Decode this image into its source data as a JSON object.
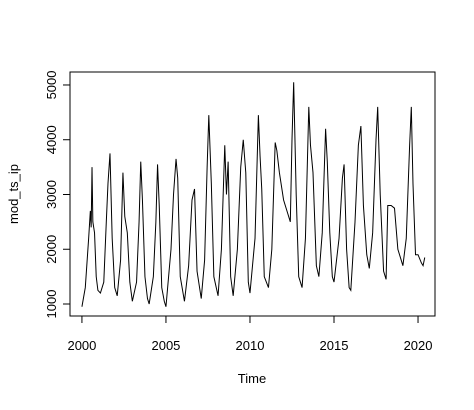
{
  "chart_data": {
    "type": "line",
    "xlabel": "Time",
    "ylabel": "mod_ts_ip",
    "color": "#000000",
    "x": [
      2000.0,
      2000.2,
      2000.4,
      2000.5,
      2000.55,
      2000.6,
      2000.65,
      2000.75,
      2000.85,
      2000.95,
      2001.1,
      2001.3,
      2001.45,
      2001.55,
      2001.67,
      2001.8,
      2001.95,
      2002.1,
      2002.3,
      2002.44,
      2002.55,
      2002.7,
      2002.85,
      2003.0,
      2003.25,
      2003.4,
      2003.5,
      2003.6,
      2003.75,
      2003.9,
      2004.0,
      2004.25,
      2004.4,
      2004.5,
      2004.6,
      2004.75,
      2004.9,
      2005.0,
      2005.3,
      2005.45,
      2005.6,
      2005.7,
      2005.85,
      2006.1,
      2006.35,
      2006.55,
      2006.7,
      2006.85,
      2007.1,
      2007.3,
      2007.45,
      2007.55,
      2007.7,
      2007.85,
      2008.1,
      2008.3,
      2008.5,
      2008.6,
      2008.7,
      2008.85,
      2009.0,
      2009.25,
      2009.45,
      2009.6,
      2009.75,
      2009.9,
      2010.0,
      2010.3,
      2010.5,
      2010.6,
      2010.7,
      2010.85,
      2011.1,
      2011.3,
      2011.5,
      2011.6,
      2011.75,
      2012.0,
      2012.3,
      2012.4,
      2012.5,
      2012.6,
      2012.75,
      2012.9,
      2013.1,
      2013.3,
      2013.5,
      2013.6,
      2013.75,
      2013.95,
      2014.1,
      2014.3,
      2014.5,
      2014.6,
      2014.75,
      2014.9,
      2015.0,
      2015.3,
      2015.5,
      2015.6,
      2015.75,
      2015.9,
      2016.0,
      2016.25,
      2016.45,
      2016.6,
      2016.75,
      2016.95,
      2017.1,
      2017.3,
      2017.5,
      2017.6,
      2017.75,
      2017.95,
      2018.1,
      2018.2,
      2018.4,
      2018.6,
      2018.8,
      2019.1,
      2019.3,
      2019.5,
      2019.6,
      2019.7,
      2019.85,
      2020.0,
      2020.2,
      2020.3,
      2020.4
    ],
    "values": [
      950,
      1300,
      2200,
      2700,
      2400,
      3500,
      2500,
      2300,
      1500,
      1250,
      1200,
      1400,
      2500,
      3200,
      3750,
      2200,
      1300,
      1150,
      1800,
      3400,
      2600,
      2300,
      1400,
      1050,
      1400,
      2500,
      3600,
      2900,
      1500,
      1100,
      1000,
      1500,
      2500,
      3550,
      2800,
      1300,
      1050,
      950,
      2000,
      3000,
      3650,
      3300,
      1500,
      1050,
      1700,
      2900,
      3100,
      1600,
      1100,
      1800,
      3500,
      4450,
      3200,
      1500,
      1150,
      2000,
      3900,
      3000,
      3600,
      1500,
      1150,
      2000,
      3500,
      4000,
      3400,
      1400,
      1200,
      2200,
      4450,
      3700,
      3100,
      1500,
      1300,
      2000,
      3950,
      3800,
      3400,
      2900,
      2600,
      2500,
      4000,
      5050,
      3000,
      1500,
      1300,
      2200,
      4600,
      3900,
      3400,
      1700,
      1500,
      2300,
      4200,
      3600,
      2300,
      1500,
      1400,
      2200,
      3300,
      3550,
      2000,
      1300,
      1250,
      2500,
      3900,
      4250,
      2800,
      1900,
      1650,
      2300,
      4000,
      4600,
      3000,
      1600,
      1450,
      2800,
      2800,
      2750,
      2000,
      1700,
      2200,
      3900,
      4600,
      3200,
      1900,
      1900,
      1750,
      1700,
      1850
    ],
    "xlim": [
      1999.29,
      2021.01
    ],
    "ylim": [
      781,
      5237
    ],
    "xticks": [
      2000,
      2005,
      2010,
      2015,
      2020
    ],
    "yticks": [
      1000,
      2000,
      3000,
      4000,
      5000
    ]
  }
}
